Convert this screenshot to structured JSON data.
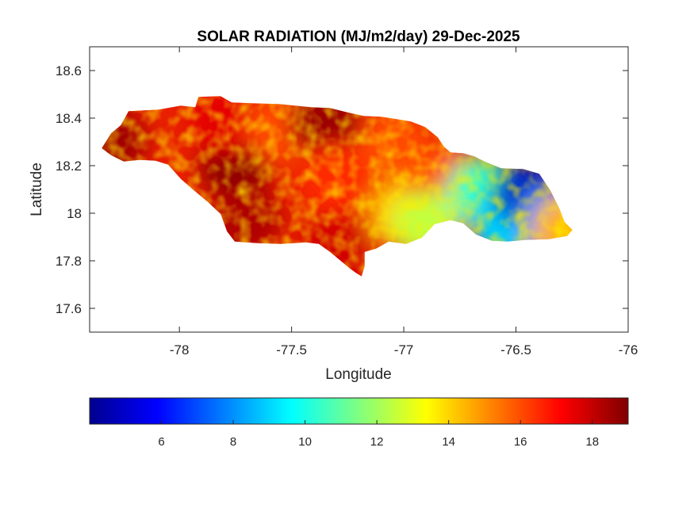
{
  "chart_data": {
    "type": "heatmap",
    "title": "SOLAR RADIATION (MJ/m2/day) 29-Dec-2025",
    "xlabel": "Longitude",
    "ylabel": "Latitude",
    "xlim": [
      -78.4,
      -76
    ],
    "ylim": [
      17.5,
      18.7
    ],
    "xticks": [
      "-78",
      "-77.5",
      "-77",
      "-76.5",
      "-76"
    ],
    "yticks": [
      "17.6",
      "17.8",
      "18",
      "18.2",
      "18.4",
      "18.6"
    ],
    "grid": false,
    "colormap": "jet",
    "colorbar": {
      "orientation": "horizontal",
      "location": "below",
      "range": [
        4,
        19
      ],
      "ticks": [
        "6",
        "8",
        "10",
        "12",
        "14",
        "16",
        "18"
      ]
    },
    "region": "Jamaica",
    "value_zones": [
      {
        "lon": -78.3,
        "lat": 18.3,
        "value": 18.5
      },
      {
        "lon": -77.75,
        "lat": 18.2,
        "value": 18.8
      },
      {
        "lon": -77.7,
        "lat": 17.97,
        "value": 18.3
      },
      {
        "lon": -77.8,
        "lat": 18.4,
        "value": 17.5
      },
      {
        "lon": -77.55,
        "lat": 18.35,
        "value": 16.0
      },
      {
        "lon": -77.35,
        "lat": 18.38,
        "value": 18.6
      },
      {
        "lon": -77.3,
        "lat": 18.15,
        "value": 16.5
      },
      {
        "lon": -77.05,
        "lat": 18.3,
        "value": 16.0
      },
      {
        "lon": -77.3,
        "lat": 17.85,
        "value": 17.8
      },
      {
        "lon": -77.0,
        "lat": 18.0,
        "value": 14.0
      },
      {
        "lon": -76.85,
        "lat": 18.15,
        "value": 16.0
      },
      {
        "lon": -76.9,
        "lat": 17.95,
        "value": 12.5
      },
      {
        "lon": -76.65,
        "lat": 18.1,
        "value": 10.5
      },
      {
        "lon": -76.55,
        "lat": 17.95,
        "value": 9.0
      },
      {
        "lon": -76.45,
        "lat": 18.08,
        "value": 5.0
      },
      {
        "lon": -76.35,
        "lat": 17.97,
        "value": 8.0
      },
      {
        "lon": -76.28,
        "lat": 17.93,
        "value": 14.5
      }
    ]
  }
}
